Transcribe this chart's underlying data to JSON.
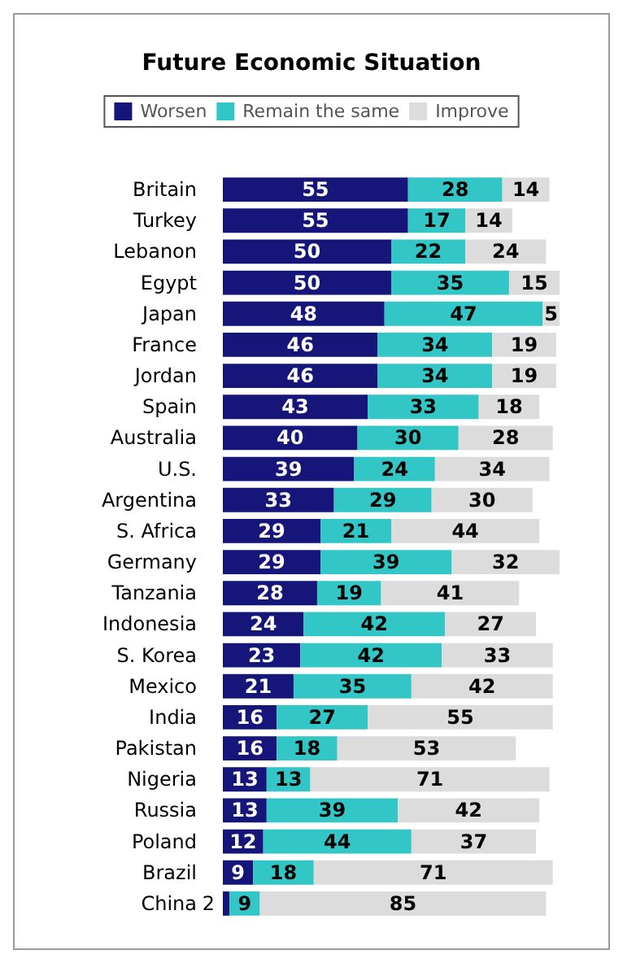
{
  "chart_data": {
    "type": "bar",
    "orientation": "horizontal",
    "stacked": true,
    "title": "Future Economic Situation",
    "categories": [
      "Britain",
      "Turkey",
      "Lebanon",
      "Egypt",
      "Japan",
      "France",
      "Jordan",
      "Spain",
      "Australia",
      "U.S.",
      "Argentina",
      "S. Africa",
      "Germany",
      "Tanzania",
      "Indonesia",
      "S. Korea",
      "Mexico",
      "India",
      "Pakistan",
      "Nigeria",
      "Russia",
      "Poland",
      "Brazil",
      "China"
    ],
    "series": [
      {
        "name": "Worsen",
        "color": "#16167a",
        "values": [
          55,
          55,
          50,
          50,
          48,
          46,
          46,
          43,
          40,
          39,
          33,
          29,
          29,
          28,
          24,
          23,
          21,
          16,
          16,
          13,
          13,
          12,
          9,
          2
        ]
      },
      {
        "name": "Remain the same",
        "color": "#33c6c6",
        "values": [
          28,
          17,
          22,
          35,
          47,
          34,
          34,
          33,
          30,
          24,
          29,
          21,
          39,
          19,
          42,
          42,
          35,
          27,
          18,
          13,
          39,
          44,
          18,
          9
        ]
      },
      {
        "name": "Improve",
        "color": "#dcdcdc",
        "values": [
          14,
          14,
          24,
          15,
          5,
          19,
          19,
          18,
          28,
          34,
          30,
          44,
          32,
          41,
          27,
          33,
          42,
          55,
          53,
          71,
          42,
          37,
          71,
          85
        ]
      }
    ],
    "xlim": [
      0,
      100
    ],
    "tick_labels": "y",
    "data_labels": true,
    "legend": "top"
  }
}
